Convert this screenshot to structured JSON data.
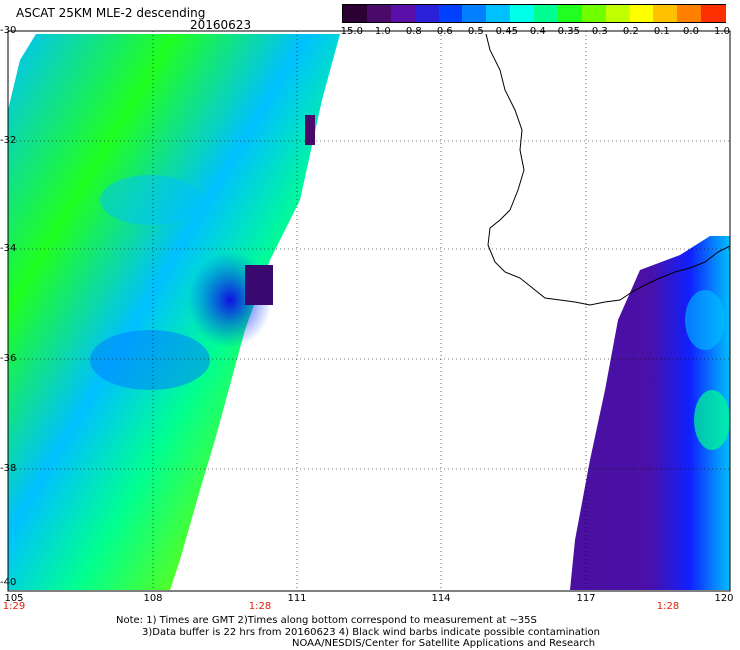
{
  "title": "ASCAT 25KM MLE-2 descending",
  "date": "20160623",
  "colorbar": {
    "labels": [
      "-15.0",
      "-1.0",
      "-0.8",
      "-0.6",
      "-0.5",
      "-0.45",
      "-0.4",
      "-0.35",
      "-0.3",
      "-0.2",
      "-0.1",
      "0.0",
      "1.0"
    ],
    "colors": [
      "#2b0033",
      "#4a0a6a",
      "#5a10a8",
      "#2a20d8",
      "#0040ff",
      "#0080ff",
      "#00c0ff",
      "#00ffe8",
      "#00ff90",
      "#20ff20",
      "#70ff00",
      "#c0ff00",
      "#ffff00",
      "#ffc000",
      "#ff8000",
      "#ff3000"
    ]
  },
  "axes": {
    "y_labels": [
      "-30",
      "-32",
      "-34",
      "-36",
      "-38",
      "-40"
    ],
    "x_labels": [
      "105",
      "108",
      "111",
      "114",
      "117",
      "120"
    ],
    "time_labels": [
      "1:29",
      "1:28",
      "1:28"
    ]
  },
  "notes": {
    "line1": "Note: 1) Times are GMT 2)Times along bottom correspond to measurement at ~35S",
    "line2": "3)Data buffer is 22 hrs from 20160623 4) Black wind barbs indicate possible contamination",
    "line3": "NOAA/NESDIS/Center for Satellite Applications and Research"
  }
}
